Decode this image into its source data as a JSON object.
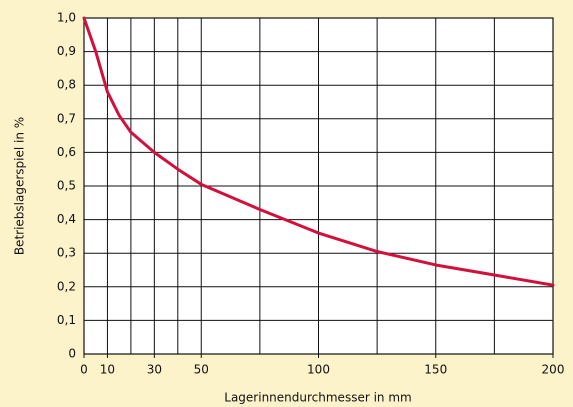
{
  "chart_data": {
    "type": "line",
    "xlabel": "Lagerinnendurchmesser in mm",
    "ylabel": "Betriebslagerspiel  in %",
    "x": [
      0,
      5,
      10,
      15,
      20,
      30,
      40,
      50,
      75,
      100,
      125,
      150,
      175,
      200
    ],
    "series": [
      {
        "color": "#d2103c",
        "values": [
          1.0,
          0.9,
          0.78,
          0.71,
          0.66,
          0.6,
          0.55,
          0.505,
          0.43,
          0.36,
          0.305,
          0.265,
          0.235,
          0.205
        ]
      }
    ],
    "xlim": [
      0,
      200
    ],
    "xticks": [
      0,
      10,
      30,
      50,
      100,
      150,
      200
    ],
    "xgrid": [
      0,
      10,
      20,
      30,
      40,
      50,
      75,
      100,
      125,
      150,
      175,
      200
    ],
    "ylim": [
      0,
      1.0
    ],
    "yticks": [
      0,
      {
        "value": 0.1,
        "label": "0,1"
      },
      {
        "value": 0.2,
        "label": "0,2"
      },
      {
        "value": 0.3,
        "label": "0,3"
      },
      {
        "value": 0.4,
        "label": "0,4"
      },
      {
        "value": 0.5,
        "label": "0,5"
      },
      {
        "value": 0.6,
        "label": "0,6"
      },
      {
        "value": 0.7,
        "label": "0,7"
      },
      {
        "value": 0.8,
        "label": "0,8"
      },
      {
        "value": 0.9,
        "label": "0,9"
      },
      {
        "value": 1.0,
        "label": "1,0"
      }
    ],
    "grid": true
  }
}
